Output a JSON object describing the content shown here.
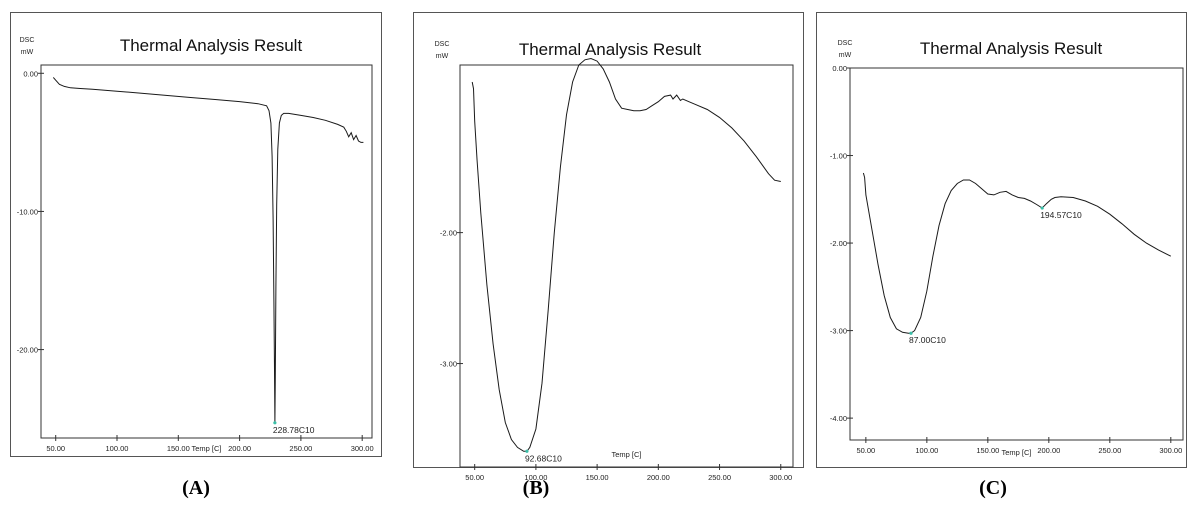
{
  "panels": [
    {
      "caption": "(A)",
      "chart_data": {
        "type": "line",
        "title": "Thermal Analysis Result",
        "ylabel_top": "DSC",
        "ylabel_unit": "mW",
        "xlabel": "Temp [C]",
        "xlim": [
          38,
          308
        ],
        "ylim": [
          -26.4,
          0.6
        ],
        "xticks": [
          50,
          100,
          150,
          200,
          250,
          300
        ],
        "xtick_labels": [
          "50.00",
          "100.00",
          "150.00",
          "200.00",
          "250.00",
          "300.00"
        ],
        "yticks": [
          0,
          -10,
          -20
        ],
        "ytick_labels": [
          "0.00",
          "-10.00",
          "-20.00"
        ],
        "annotations": [
          {
            "x": 228.78,
            "y": -25.3,
            "text": "228.78C10"
          }
        ],
        "series": [
          {
            "color": "#1a1a1a",
            "x": [
              48,
              50,
              53,
              57,
              62,
              70,
              80,
              100,
              120,
              140,
              160,
              180,
              200,
              215,
              222,
              224,
              225.5,
              226.5,
              227.3,
              228,
              228.5,
              228.78,
              229.1,
              229.6,
              230.3,
              231.2,
              232.5,
              234,
              236,
              240,
              250,
              260,
              270,
              280,
              285,
              287,
              289,
              291,
              293,
              295,
              297,
              299,
              301
            ],
            "y": [
              -0.3,
              -0.5,
              -0.8,
              -0.95,
              -1.05,
              -1.1,
              -1.15,
              -1.3,
              -1.45,
              -1.6,
              -1.75,
              -1.9,
              -2.05,
              -2.2,
              -2.35,
              -2.7,
              -3.6,
              -6.0,
              -10.5,
              -16.5,
              -21.5,
              -25.3,
              -22.0,
              -15.5,
              -9.5,
              -5.5,
              -3.6,
              -3.05,
              -2.9,
              -2.9,
              -3.05,
              -3.2,
              -3.4,
              -3.7,
              -3.9,
              -4.2,
              -4.6,
              -4.3,
              -4.8,
              -4.5,
              -4.9,
              -5.0,
              -5.0
            ]
          }
        ]
      }
    },
    {
      "caption": "(B)",
      "chart_data": {
        "type": "line",
        "title": "Thermal Analysis Result",
        "ylabel_top": "DSC",
        "ylabel_unit": "mW",
        "xlabel": "Temp [C]",
        "xlim": [
          38,
          310
        ],
        "ylim": [
          -3.79,
          -0.72
        ],
        "xticks": [
          50,
          100,
          150,
          200,
          250,
          300
        ],
        "xtick_labels": [
          "50.00",
          "100.00",
          "150.00",
          "200.00",
          "250.00",
          "300.00"
        ],
        "yticks": [
          -2,
          -3
        ],
        "ytick_labels": [
          "-2.00",
          "-3.00"
        ],
        "annotations": [
          {
            "x": 92.68,
            "y": -3.67,
            "text": "92.68C10"
          }
        ],
        "series": [
          {
            "color": "#1a1a1a",
            "x": [
              48,
              49,
              50,
              52,
              55,
              60,
              65,
              70,
              75,
              80,
              85,
              90,
              92.68,
              95,
              100,
              105,
              110,
              115,
              120,
              125,
              130,
              135,
              140,
              145,
              150,
              155,
              160,
              165,
              170,
              175,
              180,
              185,
              190,
              195,
              200,
              205,
              210,
              212,
              215,
              218,
              220,
              225,
              230,
              240,
              250,
              260,
              270,
              280,
              290,
              295,
              300
            ],
            "y": [
              -0.85,
              -0.9,
              -1.15,
              -1.45,
              -1.85,
              -2.4,
              -2.85,
              -3.2,
              -3.45,
              -3.58,
              -3.64,
              -3.67,
              -3.67,
              -3.64,
              -3.5,
              -3.15,
              -2.6,
              -2.0,
              -1.5,
              -1.1,
              -0.85,
              -0.72,
              -0.68,
              -0.67,
              -0.69,
              -0.75,
              -0.85,
              -0.98,
              -1.05,
              -1.06,
              -1.07,
              -1.07,
              -1.06,
              -1.03,
              -1.0,
              -0.96,
              -0.95,
              -0.98,
              -0.95,
              -0.99,
              -0.98,
              -1.0,
              -1.02,
              -1.06,
              -1.12,
              -1.2,
              -1.3,
              -1.42,
              -1.55,
              -1.6,
              -1.61
            ]
          }
        ]
      }
    },
    {
      "caption": "(C)",
      "chart_data": {
        "type": "line",
        "title": "Thermal Analysis Result",
        "ylabel_top": "DSC",
        "ylabel_unit": "mW",
        "xlabel": "Temp [C]",
        "xlim": [
          37,
          310
        ],
        "ylim": [
          -4.25,
          0
        ],
        "xticks": [
          50,
          100,
          150,
          200,
          250,
          300
        ],
        "xtick_labels": [
          "50.00",
          "100.00",
          "150.00",
          "200.00",
          "250.00",
          "300.00"
        ],
        "yticks": [
          0,
          -1,
          -2,
          -3,
          -4
        ],
        "ytick_labels": [
          "0.00",
          "-1.00",
          "-2.00",
          "-3.00",
          "-4.00"
        ],
        "annotations": [
          {
            "x": 87.0,
            "y": -3.03,
            "text": "87.00C10"
          },
          {
            "x": 194.57,
            "y": -1.6,
            "text": "194.57C10"
          }
        ],
        "series": [
          {
            "color": "#1a1a1a",
            "x": [
              48,
              49,
              50,
              55,
              60,
              65,
              70,
              75,
              80,
              85,
              87,
              90,
              95,
              100,
              105,
              110,
              115,
              120,
              125,
              130,
              135,
              140,
              145,
              150,
              155,
              160,
              165,
              170,
              175,
              180,
              185,
              190,
              194.57,
              198,
              202,
              205,
              210,
              220,
              230,
              240,
              250,
              260,
              270,
              280,
              290,
              300
            ],
            "y": [
              -1.2,
              -1.25,
              -1.45,
              -1.85,
              -2.25,
              -2.6,
              -2.85,
              -2.98,
              -3.02,
              -3.03,
              -3.03,
              -3.0,
              -2.85,
              -2.55,
              -2.15,
              -1.8,
              -1.55,
              -1.4,
              -1.32,
              -1.28,
              -1.28,
              -1.32,
              -1.38,
              -1.44,
              -1.45,
              -1.42,
              -1.41,
              -1.45,
              -1.48,
              -1.49,
              -1.52,
              -1.56,
              -1.6,
              -1.55,
              -1.5,
              -1.48,
              -1.47,
              -1.48,
              -1.52,
              -1.58,
              -1.67,
              -1.78,
              -1.9,
              -2.0,
              -2.08,
              -2.15
            ]
          }
        ]
      }
    }
  ]
}
